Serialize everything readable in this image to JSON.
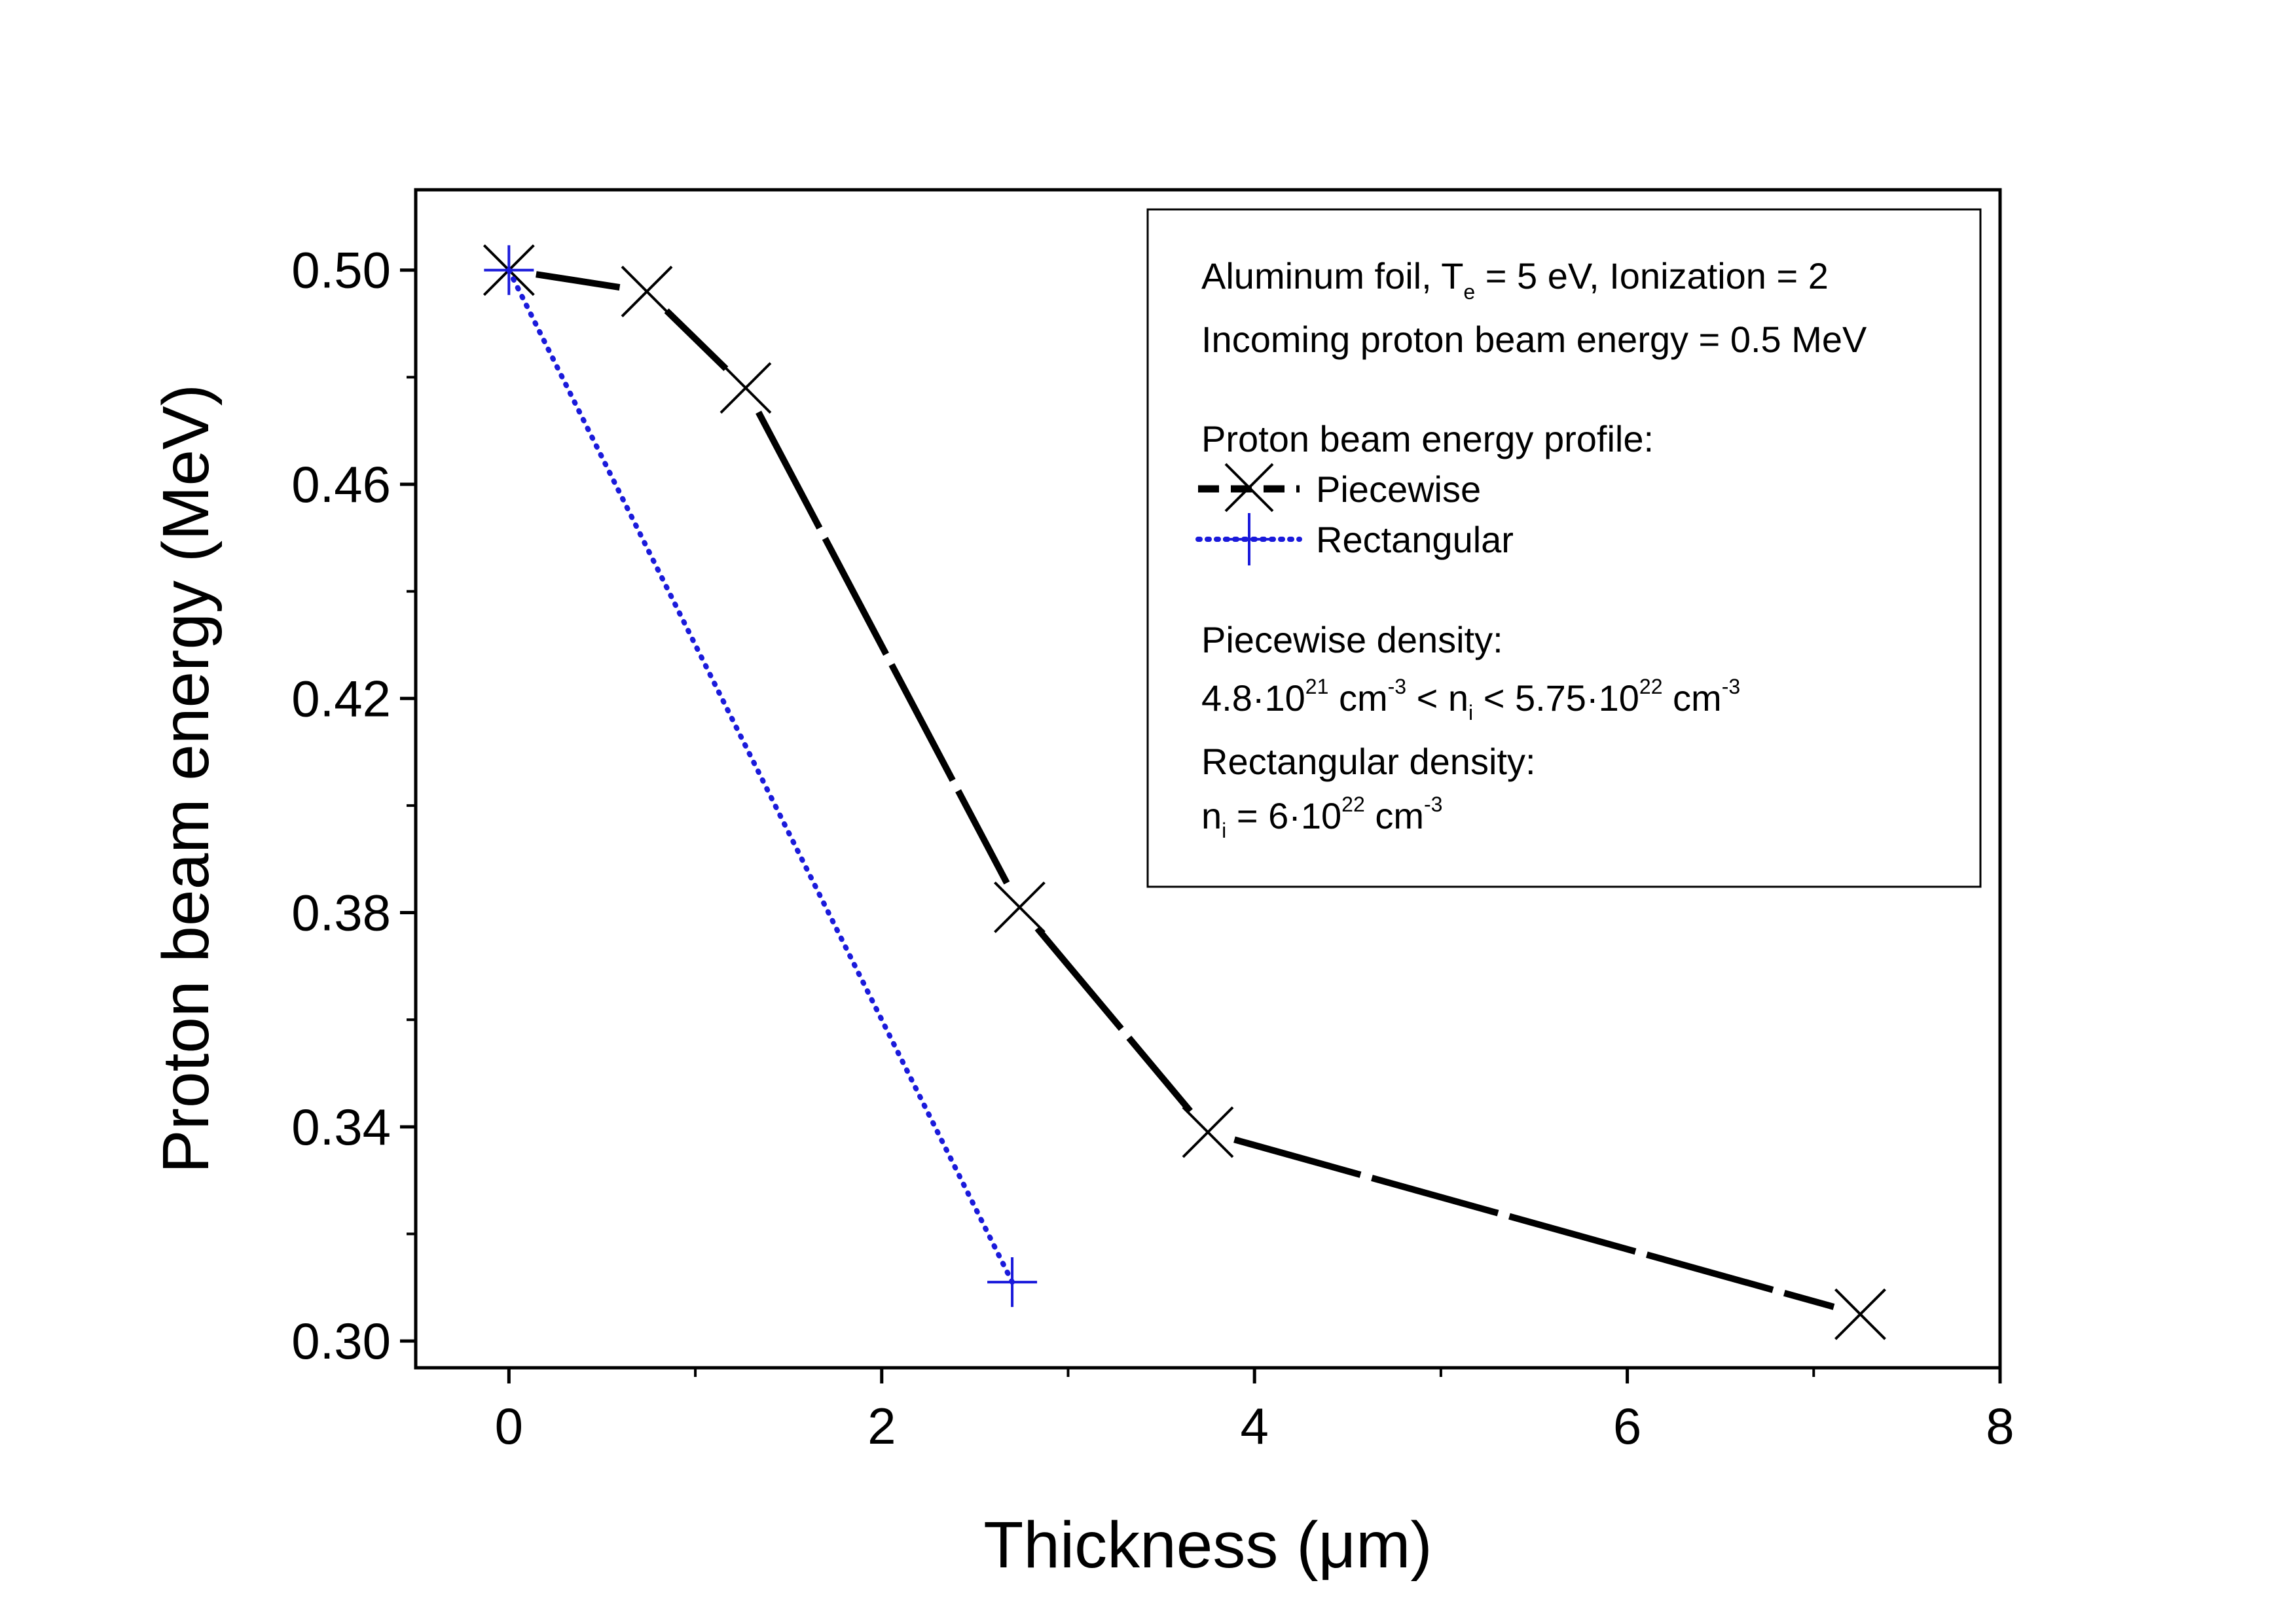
{
  "chart_data": {
    "type": "line",
    "title": "",
    "xlabel": "Thickness (μm)",
    "ylabel": "Proton beam energy (MeV)",
    "xlim": [
      -0.5,
      8
    ],
    "ylim": [
      0.295,
      0.515
    ],
    "xticks": [
      0,
      2,
      4,
      6,
      8
    ],
    "xtick_labels": [
      "0",
      "2",
      "4",
      "6",
      "8"
    ],
    "yticks": [
      0.3,
      0.34,
      0.38,
      0.42,
      0.46,
      0.5
    ],
    "ytick_labels": [
      "0.30",
      "0.34",
      "0.38",
      "0.42",
      "0.46",
      "0.50"
    ],
    "grid": false,
    "legend_position": "top-right",
    "series": [
      {
        "name": "Piecewise",
        "line_style": "dash",
        "marker": "x",
        "color": "#000000",
        "x": [
          0,
          0.74,
          1.27,
          2.74,
          3.75,
          7.25
        ],
        "y": [
          0.5,
          0.496,
          0.478,
          0.381,
          0.339,
          0.305
        ]
      },
      {
        "name": "Rectangular",
        "line_style": "dot",
        "marker": "plus",
        "color": "#1a1adb",
        "x": [
          0,
          2.7
        ],
        "y": [
          0.5,
          0.311
        ]
      }
    ],
    "annotations": {
      "line1": {
        "a": "Aluminum foil, T",
        "sub": "e",
        "b": " = 5 eV, Ionization = 2"
      },
      "line2": "Incoming proton beam energy = 0.5 MeV",
      "line3": "Proton beam energy profile:",
      "line4": "Piecewise density:",
      "line5": {
        "p1": "4.8·10",
        "s1": "21",
        "p2": " cm",
        "s2": "-3",
        "p3": " < n",
        "b1": "i",
        "p4": " < 5.75·10",
        "s3": "22",
        "p5": " cm",
        "s4": "-3"
      },
      "line6": "Rectangular density:",
      "line7": {
        "p1": "n",
        "b1": "i",
        "p2": " = 6·10",
        "s1": "22",
        "p3": " cm",
        "s2": "-3"
      }
    }
  }
}
